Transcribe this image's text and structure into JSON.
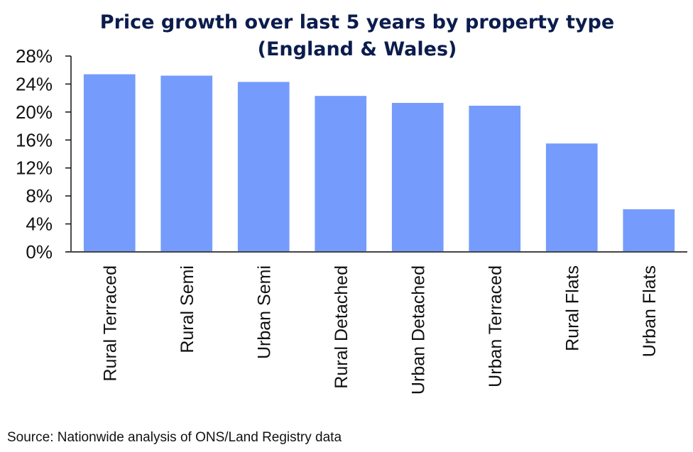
{
  "chart_data": {
    "type": "bar",
    "title": "Price growth over last 5 years by property type",
    "subtitle": "(England & Wales)",
    "xlabel": "",
    "ylabel": "",
    "categories": [
      "Rural Terraced",
      "Rural Semi",
      "Urban Semi",
      "Rural Detached",
      "Urban Detached",
      "Urban Terraced",
      "Rural Flats",
      "Urban Flats"
    ],
    "values": [
      25.4,
      25.2,
      24.3,
      22.3,
      21.3,
      20.9,
      15.5,
      6.1
    ],
    "unit": "%",
    "ylim": [
      0,
      28
    ],
    "yticks": [
      0,
      4,
      8,
      12,
      16,
      20,
      24,
      28
    ],
    "ytick_labels": [
      "0%",
      "4%",
      "8%",
      "12%",
      "16%",
      "20%",
      "24%",
      "28%"
    ],
    "grid": false,
    "legend": "none",
    "bar_color": "#759cfc",
    "source": "Source: Nationwide analysis of ONS/Land Registry data"
  }
}
